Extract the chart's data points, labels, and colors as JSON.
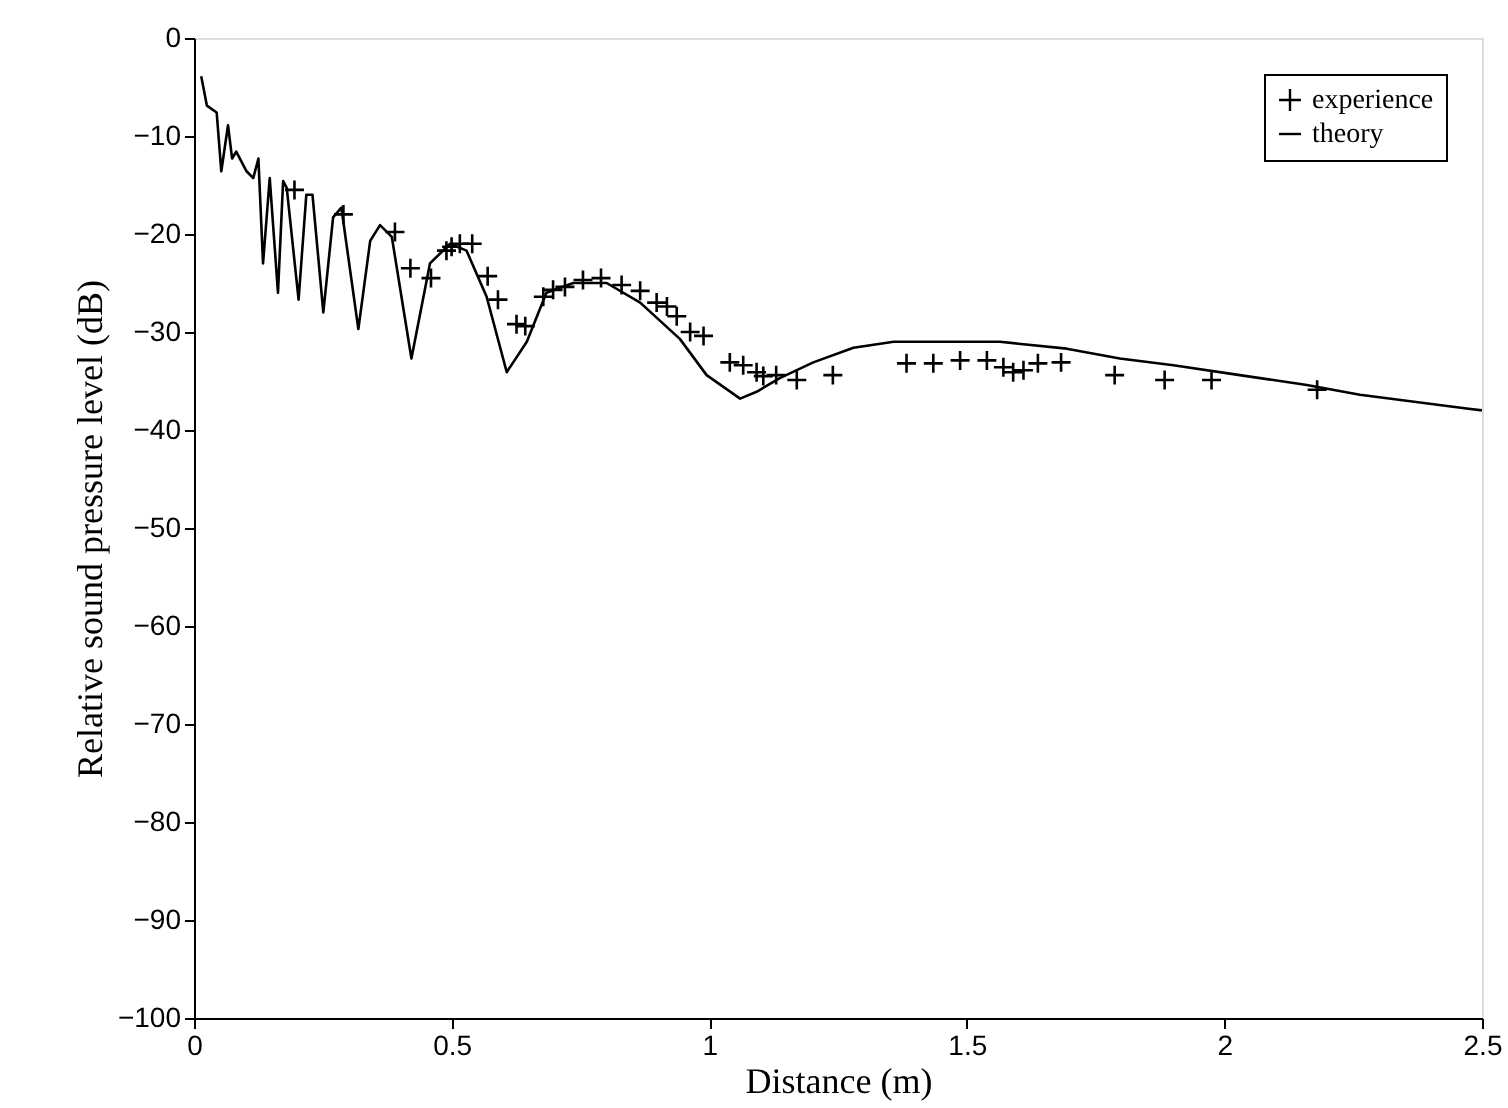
{
  "chart_data": {
    "type": "line",
    "xlabel": "Distance (m)",
    "ylabel": "Relative sound pressure level (dB)",
    "xlim": [
      0,
      2.5
    ],
    "xticks": [
      0,
      0.5,
      1,
      1.5,
      2,
      2.5
    ],
    "ylim": [
      -100,
      0
    ],
    "yticks": [
      -100,
      -90,
      -80,
      -70,
      -60,
      -50,
      -40,
      -30,
      -20,
      -10,
      0
    ],
    "grid": false,
    "legend": "top right",
    "series": [
      {
        "name": "experience",
        "type": "scatter",
        "marker": "cross",
        "color": "#000000",
        "x": [
          0.195,
          0.29,
          0.39,
          0.42,
          0.46,
          0.49,
          0.5,
          0.516,
          0.54,
          0.57,
          0.59,
          0.626,
          0.643,
          0.678,
          0.697,
          0.72,
          0.755,
          0.79,
          0.83,
          0.866,
          0.898,
          0.918,
          0.937,
          0.963,
          0.989,
          1.04,
          1.066,
          1.092,
          1.105,
          1.13,
          1.17,
          1.24,
          1.383,
          1.435,
          1.487,
          1.539,
          1.571,
          1.59,
          1.61,
          1.638,
          1.683,
          1.787,
          1.884,
          1.975,
          2.18
        ],
        "values": [
          -15.5,
          -18,
          -19.8,
          -23.5,
          -24.5,
          -21.7,
          -21.3,
          -21,
          -21,
          -24.3,
          -26.7,
          -29.2,
          -29.4,
          -26.4,
          -25.7,
          -25.4,
          -24.7,
          -24.5,
          -25.2,
          -25.8,
          -27,
          -27.4,
          -28.4,
          -30,
          -30.4,
          -33.1,
          -33.4,
          -34.1,
          -34.5,
          -34.4,
          -34.9,
          -34.4,
          -33.2,
          -33.2,
          -32.9,
          -32.9,
          -33.6,
          -34.1,
          -33.9,
          -33.2,
          -33.1,
          -34.4,
          -34.9,
          -34.9,
          -35.9
        ]
      },
      {
        "name": "theory",
        "marker": "none",
        "line_style": "solid",
        "color": "#000000",
        "x": [
          0.014,
          0.025,
          0.044,
          0.053,
          0.066,
          0.074,
          0.082,
          0.102,
          0.115,
          0.125,
          0.134,
          0.147,
          0.163,
          0.173,
          0.18,
          0.203,
          0.218,
          0.23,
          0.251,
          0.27,
          0.286,
          0.319,
          0.342,
          0.361,
          0.384,
          0.422,
          0.458,
          0.497,
          0.529,
          0.568,
          0.607,
          0.646,
          0.684,
          0.736,
          0.801,
          0.866,
          0.943,
          0.995,
          1.06,
          1.092,
          1.137,
          1.202,
          1.28,
          1.358,
          1.564,
          1.694,
          1.797,
          1.901,
          2.03,
          2.16,
          2.263,
          2.47,
          2.5
        ],
        "values": [
          -3.9,
          -6.9,
          -7.6,
          -13.6,
          -8.9,
          -12.3,
          -11.6,
          -13.6,
          -14.3,
          -12.3,
          -23,
          -14.3,
          -26,
          -14.6,
          -15.3,
          -26.7,
          -16,
          -16,
          -28,
          -18.3,
          -17.3,
          -29.7,
          -20.7,
          -19.1,
          -20.3,
          -32.7,
          -23,
          -21,
          -21.7,
          -26.4,
          -34.1,
          -31,
          -26,
          -25,
          -25,
          -27,
          -30.7,
          -34.4,
          -36.8,
          -36.1,
          -34.7,
          -33.1,
          -31.6,
          -31,
          -31,
          -31.7,
          -32.7,
          -33.4,
          -34.4,
          -35.4,
          -36.4,
          -37.8,
          -38
        ]
      }
    ]
  }
}
